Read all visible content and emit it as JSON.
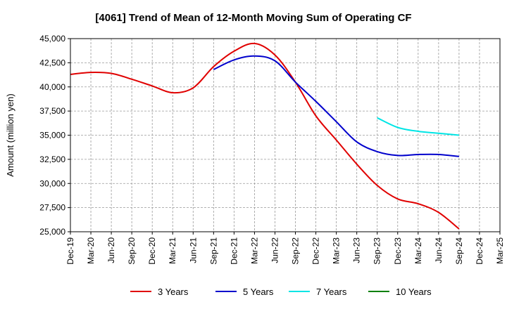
{
  "chart_data": {
    "type": "line",
    "title": "[4061]  Trend of Mean of 12-Month Moving Sum of Operating CF",
    "xlabel": "",
    "ylabel": "Amount (million yen)",
    "ylim": [
      25000,
      45000
    ],
    "yticks": [
      25000,
      27500,
      30000,
      32500,
      35000,
      37500,
      40000,
      42500,
      45000
    ],
    "ytick_labels": [
      "25,000",
      "27,500",
      "30,000",
      "32,500",
      "35,000",
      "37,500",
      "40,000",
      "42,500",
      "45,000"
    ],
    "categories": [
      "Dec-19",
      "Mar-20",
      "Jun-20",
      "Sep-20",
      "Dec-20",
      "Mar-21",
      "Jun-21",
      "Sep-21",
      "Dec-21",
      "Mar-22",
      "Jun-22",
      "Sep-22",
      "Dec-22",
      "Mar-23",
      "Jun-23",
      "Sep-23",
      "Dec-23",
      "Mar-24",
      "Jun-24",
      "Sep-24",
      "Dec-24",
      "Mar-25"
    ],
    "grid": true,
    "series": [
      {
        "name": "3 Years",
        "color": "#e00000",
        "x": [
          "Dec-19",
          "Mar-20",
          "Jun-20",
          "Sep-20",
          "Dec-20",
          "Mar-21",
          "Jun-21",
          "Sep-21",
          "Dec-21",
          "Mar-22",
          "Jun-22",
          "Sep-22",
          "Dec-22",
          "Mar-23",
          "Jun-23",
          "Sep-23",
          "Dec-23",
          "Mar-24",
          "Jun-24",
          "Sep-24"
        ],
        "values": [
          41300,
          41500,
          41400,
          40800,
          40100,
          39400,
          39900,
          42100,
          43700,
          44500,
          43300,
          40500,
          37000,
          34500,
          32000,
          29800,
          28400,
          27900,
          27000,
          25300
        ]
      },
      {
        "name": "5 Years",
        "color": "#0000cc",
        "x": [
          "Sep-21",
          "Dec-21",
          "Mar-22",
          "Jun-22",
          "Sep-22",
          "Dec-22",
          "Mar-23",
          "Jun-23",
          "Sep-23",
          "Dec-23",
          "Mar-24",
          "Jun-24",
          "Sep-24"
        ],
        "values": [
          41800,
          42800,
          43200,
          42700,
          40500,
          38500,
          36400,
          34300,
          33300,
          32900,
          33000,
          33000,
          32800
        ]
      },
      {
        "name": "7 Years",
        "color": "#00e5e5",
        "x": [
          "Sep-23",
          "Dec-23",
          "Mar-24",
          "Jun-24",
          "Sep-24"
        ],
        "values": [
          36800,
          35800,
          35400,
          35200,
          35000
        ]
      },
      {
        "name": "10 Years",
        "color": "#008000",
        "x": [],
        "values": []
      }
    ],
    "legend": "bottom-center"
  }
}
